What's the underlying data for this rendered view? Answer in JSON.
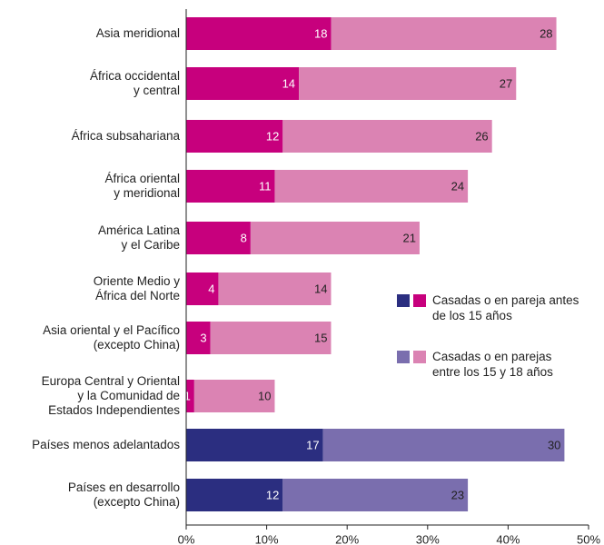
{
  "chart_data": {
    "type": "bar",
    "orientation": "horizontal",
    "stacked": true,
    "categories": [
      "Asia meridional",
      "África occidental\ny central",
      "África subsahariana",
      "África oriental\ny meridional",
      "América Latina\ny el Caribe",
      "Oriente Medio y\nÁfrica del Norte",
      "Asia oriental y el Pacífico\n(excepto China)",
      "Europa Central y Oriental\ny la Comunidad de\nEstados Independientes",
      "Países menos adelantados",
      "Países en desarrollo\n(excepto China)"
    ],
    "series": [
      {
        "name": "Casadas o en pareja antes de los 15 años",
        "color": "#c7007d",
        "values": [
          18,
          14,
          12,
          11,
          8,
          4,
          3,
          1,
          17,
          12
        ],
        "colors": [
          "#c7007d",
          "#c7007d",
          "#c7007d",
          "#c7007d",
          "#c7007d",
          "#c7007d",
          "#c7007d",
          "#c7007d",
          "#2b2e80",
          "#2b2e80"
        ]
      },
      {
        "name": "Casadas o en parejas entre los 15 y 18 años",
        "color": "#db83b3",
        "values": [
          28,
          27,
          26,
          24,
          21,
          14,
          15,
          10,
          30,
          23
        ],
        "colors": [
          "#db83b3",
          "#db83b3",
          "#db83b3",
          "#db83b3",
          "#db83b3",
          "#db83b3",
          "#db83b3",
          "#db83b3",
          "#7a6eae",
          "#7a6eae"
        ]
      }
    ],
    "legend_swatches": [
      [
        "#2b2e80",
        "#c7007d"
      ],
      [
        "#7a6eae",
        "#db83b3"
      ]
    ],
    "xlim": [
      0,
      50
    ],
    "xticks": [
      {
        "value": 0,
        "label": "0%"
      },
      {
        "value": 10,
        "label": "10%"
      },
      {
        "value": 20,
        "label": "20%"
      },
      {
        "value": 30,
        "label": "30%"
      },
      {
        "value": 40,
        "label": "40%"
      },
      {
        "value": 50,
        "label": "50%"
      }
    ],
    "grid": false
  }
}
